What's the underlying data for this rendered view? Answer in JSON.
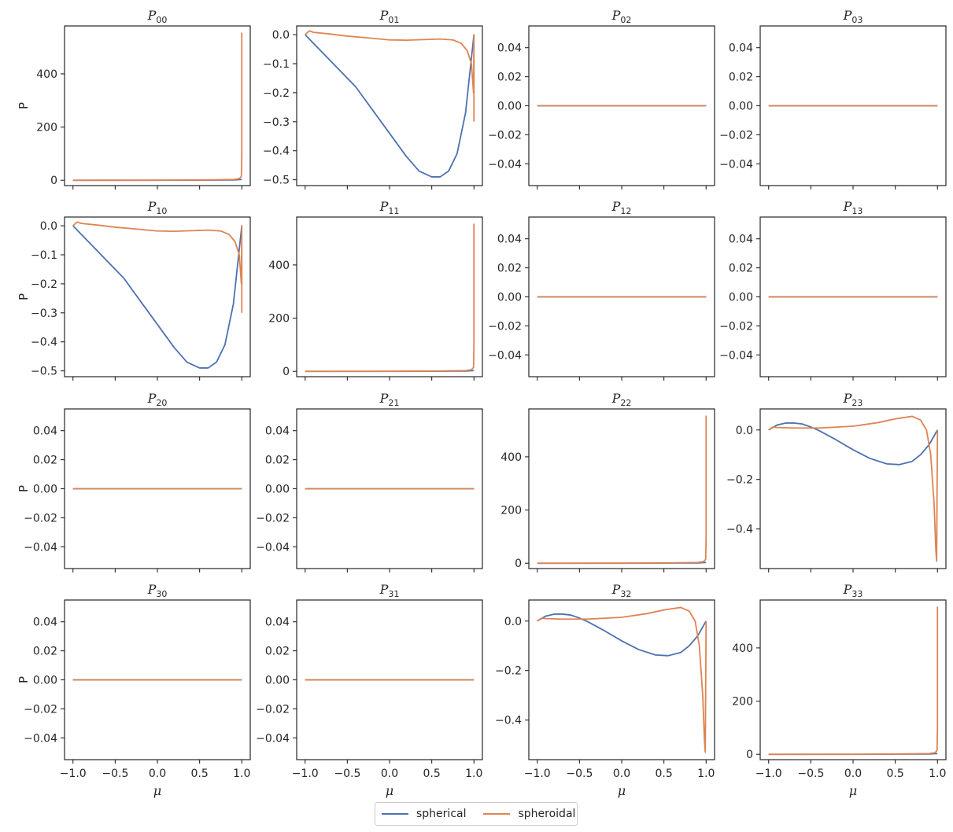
{
  "chart_data": {
    "type": "line",
    "layout": "4x4 grid of subplots",
    "shared_x": true,
    "xlabel": "μ",
    "ylabel": "P",
    "xlim": [
      -1.1,
      1.1
    ],
    "xticks": [
      -1.0,
      -0.5,
      0.0,
      0.5,
      1.0
    ],
    "xtick_labels": [
      "−1.0",
      "−0.5",
      "0.0",
      "0.5",
      "1.0"
    ],
    "colors": {
      "spherical": "#4c72b0",
      "spheroidal": "#dd8452",
      "axes": "#262626"
    },
    "legend": {
      "placement": "bottom-center",
      "entries": [
        "spherical",
        "spheroidal"
      ]
    },
    "subplots": [
      {
        "title_base": "P",
        "title_sub": "00",
        "ylim": [
          -20,
          580
        ],
        "yticks": [
          0,
          200,
          400
        ],
        "ytick_labels": [
          "0",
          "200",
          "400"
        ],
        "series": [
          {
            "name": "spherical",
            "x": [
              -1.0,
              0.0,
              0.9,
              1.0
            ],
            "y": [
              0,
              0,
              1,
              3
            ]
          },
          {
            "name": "spheroidal",
            "x": [
              -1.0,
              0.0,
              0.5,
              0.9,
              0.97,
              0.995,
              1.0,
              1.0
            ],
            "y": [
              0,
              0.3,
              1,
              3,
              6,
              15,
              100,
              555
            ]
          }
        ]
      },
      {
        "title_base": "P",
        "title_sub": "01",
        "ylim": [
          -0.52,
          0.03
        ],
        "yticks": [
          0.0,
          -0.1,
          -0.2,
          -0.3,
          -0.4,
          -0.5
        ],
        "ytick_labels": [
          "0.0",
          "−0.1",
          "−0.2",
          "−0.3",
          "−0.4",
          "−0.5"
        ],
        "series": [
          {
            "name": "spherical",
            "x": [
              -1.0,
              -0.8,
              -0.6,
              -0.4,
              -0.2,
              0.0,
              0.2,
              0.35,
              0.5,
              0.6,
              0.7,
              0.8,
              0.9,
              1.0
            ],
            "y": [
              0.0,
              -0.06,
              -0.12,
              -0.18,
              -0.26,
              -0.34,
              -0.42,
              -0.47,
              -0.49,
              -0.49,
              -0.47,
              -0.41,
              -0.27,
              0.0
            ]
          },
          {
            "name": "spheroidal",
            "x": [
              -1.0,
              -0.95,
              -0.9,
              -0.7,
              -0.5,
              -0.3,
              0.0,
              0.2,
              0.4,
              0.6,
              0.75,
              0.85,
              0.92,
              0.97,
              0.995,
              1.0,
              1.0
            ],
            "y": [
              0.0,
              0.013,
              0.008,
              0.002,
              -0.005,
              -0.01,
              -0.018,
              -0.019,
              -0.017,
              -0.015,
              -0.018,
              -0.03,
              -0.055,
              -0.1,
              -0.2,
              0.0,
              -0.3
            ]
          }
        ]
      },
      {
        "title_base": "P",
        "title_sub": "02",
        "ylim": [
          -0.055,
          0.055
        ],
        "yticks": [
          0.04,
          0.02,
          0.0,
          -0.02,
          -0.04
        ],
        "ytick_labels": [
          "0.04",
          "0.02",
          "0.00",
          "−0.02",
          "−0.04"
        ],
        "series": [
          {
            "name": "spherical",
            "x": [
              -1.0,
              1.0
            ],
            "y": [
              0,
              0
            ]
          },
          {
            "name": "spheroidal",
            "x": [
              -1.0,
              1.0
            ],
            "y": [
              0,
              0
            ]
          }
        ]
      },
      {
        "title_base": "P",
        "title_sub": "03",
        "ylim": [
          -0.055,
          0.055
        ],
        "yticks": [
          0.04,
          0.02,
          0.0,
          -0.02,
          -0.04
        ],
        "ytick_labels": [
          "0.04",
          "0.02",
          "0.00",
          "−0.02",
          "−0.04"
        ],
        "series": [
          {
            "name": "spherical",
            "x": [
              -1.0,
              1.0
            ],
            "y": [
              0,
              0
            ]
          },
          {
            "name": "spheroidal",
            "x": [
              -1.0,
              1.0
            ],
            "y": [
              0,
              0
            ]
          }
        ]
      },
      {
        "title_base": "P",
        "title_sub": "10",
        "ylim": [
          -0.52,
          0.03
        ],
        "yticks": [
          0.0,
          -0.1,
          -0.2,
          -0.3,
          -0.4,
          -0.5
        ],
        "ytick_labels": [
          "0.0",
          "−0.1",
          "−0.2",
          "−0.3",
          "−0.4",
          "−0.5"
        ],
        "series": [
          {
            "name": "spherical",
            "x": [
              -1.0,
              -0.8,
              -0.6,
              -0.4,
              -0.2,
              0.0,
              0.2,
              0.35,
              0.5,
              0.6,
              0.7,
              0.8,
              0.9,
              1.0
            ],
            "y": [
              0.0,
              -0.06,
              -0.12,
              -0.18,
              -0.26,
              -0.34,
              -0.42,
              -0.47,
              -0.49,
              -0.49,
              -0.47,
              -0.41,
              -0.27,
              0.0
            ]
          },
          {
            "name": "spheroidal",
            "x": [
              -1.0,
              -0.95,
              -0.9,
              -0.7,
              -0.5,
              -0.3,
              0.0,
              0.2,
              0.4,
              0.6,
              0.75,
              0.85,
              0.92,
              0.97,
              0.995,
              1.0,
              1.0
            ],
            "y": [
              0.0,
              0.013,
              0.008,
              0.002,
              -0.005,
              -0.01,
              -0.018,
              -0.019,
              -0.017,
              -0.015,
              -0.018,
              -0.03,
              -0.055,
              -0.1,
              -0.2,
              0.0,
              -0.3
            ]
          }
        ]
      },
      {
        "title_base": "P",
        "title_sub": "11",
        "ylim": [
          -20,
          580
        ],
        "yticks": [
          0,
          200,
          400
        ],
        "ytick_labels": [
          "0",
          "200",
          "400"
        ],
        "series": [
          {
            "name": "spherical",
            "x": [
              -1.0,
              0.0,
              0.9,
              1.0
            ],
            "y": [
              0,
              0,
              1,
              3
            ]
          },
          {
            "name": "spheroidal",
            "x": [
              -1.0,
              0.0,
              0.5,
              0.9,
              0.97,
              0.995,
              1.0,
              1.0
            ],
            "y": [
              0,
              0.3,
              1,
              3,
              6,
              15,
              100,
              555
            ]
          }
        ]
      },
      {
        "title_base": "P",
        "title_sub": "12",
        "ylim": [
          -0.055,
          0.055
        ],
        "yticks": [
          0.04,
          0.02,
          0.0,
          -0.02,
          -0.04
        ],
        "ytick_labels": [
          "0.04",
          "0.02",
          "0.00",
          "−0.02",
          "−0.04"
        ],
        "series": [
          {
            "name": "spherical",
            "x": [
              -1.0,
              1.0
            ],
            "y": [
              0,
              0
            ]
          },
          {
            "name": "spheroidal",
            "x": [
              -1.0,
              1.0
            ],
            "y": [
              0,
              0
            ]
          }
        ]
      },
      {
        "title_base": "P",
        "title_sub": "13",
        "ylim": [
          -0.055,
          0.055
        ],
        "yticks": [
          0.04,
          0.02,
          0.0,
          -0.02,
          -0.04
        ],
        "ytick_labels": [
          "0.04",
          "0.02",
          "0.00",
          "−0.02",
          "−0.04"
        ],
        "series": [
          {
            "name": "spherical",
            "x": [
              -1.0,
              1.0
            ],
            "y": [
              0,
              0
            ]
          },
          {
            "name": "spheroidal",
            "x": [
              -1.0,
              1.0
            ],
            "y": [
              0,
              0
            ]
          }
        ]
      },
      {
        "title_base": "P",
        "title_sub": "20",
        "ylim": [
          -0.055,
          0.055
        ],
        "yticks": [
          0.04,
          0.02,
          0.0,
          -0.02,
          -0.04
        ],
        "ytick_labels": [
          "0.04",
          "0.02",
          "0.00",
          "−0.02",
          "−0.04"
        ],
        "series": [
          {
            "name": "spherical",
            "x": [
              -1.0,
              1.0
            ],
            "y": [
              0,
              0
            ]
          },
          {
            "name": "spheroidal",
            "x": [
              -1.0,
              1.0
            ],
            "y": [
              0,
              0
            ]
          }
        ]
      },
      {
        "title_base": "P",
        "title_sub": "21",
        "ylim": [
          -0.055,
          0.055
        ],
        "yticks": [
          0.04,
          0.02,
          0.0,
          -0.02,
          -0.04
        ],
        "ytick_labels": [
          "0.04",
          "0.02",
          "0.00",
          "−0.02",
          "−0.04"
        ],
        "series": [
          {
            "name": "spherical",
            "x": [
              -1.0,
              1.0
            ],
            "y": [
              0,
              0
            ]
          },
          {
            "name": "spheroidal",
            "x": [
              -1.0,
              1.0
            ],
            "y": [
              0,
              0
            ]
          }
        ]
      },
      {
        "title_base": "P",
        "title_sub": "22",
        "ylim": [
          -20,
          580
        ],
        "yticks": [
          0,
          200,
          400
        ],
        "ytick_labels": [
          "0",
          "200",
          "400"
        ],
        "series": [
          {
            "name": "spherical",
            "x": [
              -1.0,
              0.0,
              0.9,
              1.0
            ],
            "y": [
              0,
              0,
              1,
              3
            ]
          },
          {
            "name": "spheroidal",
            "x": [
              -1.0,
              0.0,
              0.5,
              0.9,
              0.97,
              0.995,
              1.0,
              1.0
            ],
            "y": [
              0,
              0.3,
              1,
              3,
              6,
              15,
              100,
              555
            ]
          }
        ]
      },
      {
        "title_base": "P",
        "title_sub": "23",
        "ylim": [
          -0.56,
          0.085
        ],
        "yticks": [
          0.0,
          -0.2,
          -0.4
        ],
        "ytick_labels": [
          "0.0",
          "−0.2",
          "−0.4"
        ],
        "series": [
          {
            "name": "spherical",
            "x": [
              -1.0,
              -0.9,
              -0.8,
              -0.7,
              -0.6,
              -0.5,
              -0.4,
              -0.2,
              0.0,
              0.2,
              0.4,
              0.55,
              0.7,
              0.8,
              0.9,
              1.0
            ],
            "y": [
              0.0,
              0.02,
              0.028,
              0.028,
              0.024,
              0.012,
              -0.003,
              -0.04,
              -0.08,
              -0.115,
              -0.137,
              -0.14,
              -0.127,
              -0.1,
              -0.06,
              0.0
            ]
          },
          {
            "name": "spheroidal",
            "x": [
              -1.0,
              -0.95,
              -0.9,
              -0.7,
              -0.4,
              0.0,
              0.3,
              0.5,
              0.7,
              0.8,
              0.87,
              0.92,
              0.96,
              0.98,
              0.99,
              1.0
            ],
            "y": [
              0.0,
              0.012,
              0.01,
              0.008,
              0.008,
              0.015,
              0.03,
              0.045,
              0.055,
              0.04,
              0.0,
              -0.1,
              -0.3,
              -0.48,
              -0.53,
              0.0
            ]
          }
        ]
      },
      {
        "title_base": "P",
        "title_sub": "30",
        "ylim": [
          -0.055,
          0.055
        ],
        "yticks": [
          0.04,
          0.02,
          0.0,
          -0.02,
          -0.04
        ],
        "ytick_labels": [
          "0.04",
          "0.02",
          "0.00",
          "−0.02",
          "−0.04"
        ],
        "series": [
          {
            "name": "spherical",
            "x": [
              -1.0,
              1.0
            ],
            "y": [
              0,
              0
            ]
          },
          {
            "name": "spheroidal",
            "x": [
              -1.0,
              1.0
            ],
            "y": [
              0,
              0
            ]
          }
        ]
      },
      {
        "title_base": "P",
        "title_sub": "31",
        "ylim": [
          -0.055,
          0.055
        ],
        "yticks": [
          0.04,
          0.02,
          0.0,
          -0.02,
          -0.04
        ],
        "ytick_labels": [
          "0.04",
          "0.02",
          "0.00",
          "−0.02",
          "−0.04"
        ],
        "series": [
          {
            "name": "spherical",
            "x": [
              -1.0,
              1.0
            ],
            "y": [
              0,
              0
            ]
          },
          {
            "name": "spheroidal",
            "x": [
              -1.0,
              1.0
            ],
            "y": [
              0,
              0
            ]
          }
        ]
      },
      {
        "title_base": "P",
        "title_sub": "32",
        "ylim": [
          -0.56,
          0.085
        ],
        "yticks": [
          0.0,
          -0.2,
          -0.4
        ],
        "ytick_labels": [
          "0.0",
          "−0.2",
          "−0.4"
        ],
        "series": [
          {
            "name": "spherical",
            "x": [
              -1.0,
              -0.9,
              -0.8,
              -0.7,
              -0.6,
              -0.5,
              -0.4,
              -0.2,
              0.0,
              0.2,
              0.4,
              0.55,
              0.7,
              0.8,
              0.9,
              1.0
            ],
            "y": [
              0.0,
              0.02,
              0.028,
              0.028,
              0.024,
              0.012,
              -0.003,
              -0.04,
              -0.08,
              -0.115,
              -0.137,
              -0.14,
              -0.127,
              -0.1,
              -0.06,
              0.0
            ]
          },
          {
            "name": "spheroidal",
            "x": [
              -1.0,
              -0.95,
              -0.9,
              -0.7,
              -0.4,
              0.0,
              0.3,
              0.5,
              0.7,
              0.8,
              0.87,
              0.92,
              0.96,
              0.98,
              0.99,
              1.0
            ],
            "y": [
              0.0,
              0.012,
              0.01,
              0.008,
              0.008,
              0.015,
              0.03,
              0.045,
              0.055,
              0.04,
              0.0,
              -0.1,
              -0.3,
              -0.48,
              -0.53,
              0.0
            ]
          }
        ]
      },
      {
        "title_base": "P",
        "title_sub": "33",
        "ylim": [
          -20,
          580
        ],
        "yticks": [
          0,
          200,
          400
        ],
        "ytick_labels": [
          "0",
          "200",
          "400"
        ],
        "series": [
          {
            "name": "spherical",
            "x": [
              -1.0,
              0.0,
              0.9,
              1.0
            ],
            "y": [
              0,
              0,
              1,
              3
            ]
          },
          {
            "name": "spheroidal",
            "x": [
              -1.0,
              0.0,
              0.5,
              0.9,
              0.97,
              0.995,
              1.0,
              1.0
            ],
            "y": [
              0,
              0.3,
              1,
              3,
              6,
              15,
              100,
              555
            ]
          }
        ]
      }
    ]
  }
}
